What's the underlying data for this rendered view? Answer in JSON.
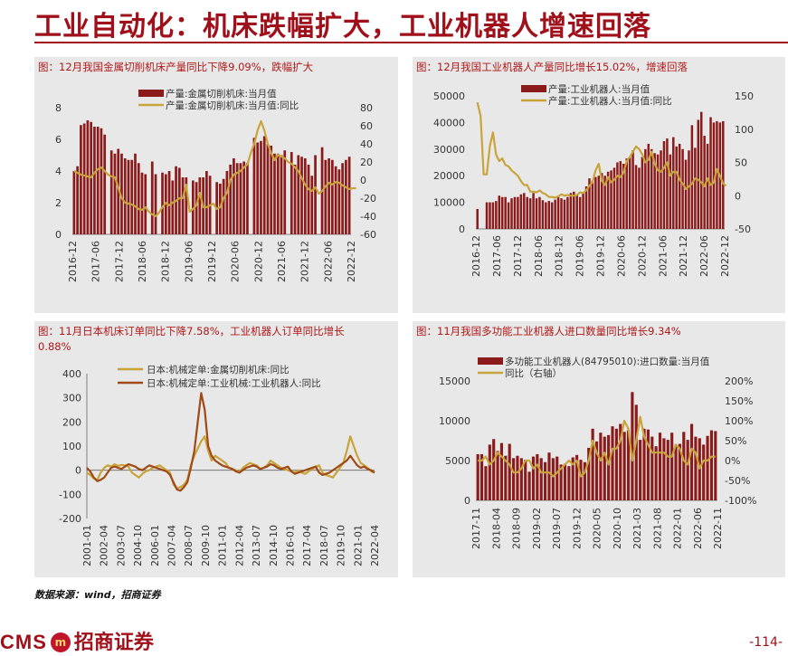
{
  "page": {
    "title": "工业自动化：机床跌幅扩大，工业机器人增速回落",
    "source": "数据来源：wind，招商证券",
    "brand_en": "CMS",
    "brand_cn": "招商证券",
    "page_number": "-114-"
  },
  "colors": {
    "bar": "#8b1a1a",
    "gold": "#c8a43a",
    "brown": "#a04a16",
    "panel": "#e8e8e8",
    "accent": "#a0101a"
  },
  "chart_data": [
    {
      "type": "bar",
      "panel_title": "图：12月我国金属切削机床产量同比下降9.09%，跌幅扩大",
      "legend": [
        "产量:金属切削机床:当月值",
        "产量:金属切削机床:当月值:同比"
      ],
      "x_ticks": [
        "2016-12",
        "2017-06",
        "2017-12",
        "2018-06",
        "2018-12",
        "2019-06",
        "2019-12",
        "2020-06",
        "2020-12",
        "2021-06",
        "2021-12",
        "2022-06",
        "2022-12"
      ],
      "y_left": {
        "ticks": [
          "0",
          "2",
          "4",
          "6",
          "8"
        ],
        "range": [
          0,
          8
        ]
      },
      "y_right": {
        "ticks": [
          "-60",
          "-40",
          "-20",
          "0",
          "20",
          "40",
          "60",
          "80"
        ],
        "range": [
          -60,
          80
        ]
      },
      "series": [
        {
          "kind": "bar",
          "axis": "left",
          "values": [
            4.0,
            4.3,
            6.9,
            7.0,
            7.2,
            7.1,
            6.8,
            6.8,
            6.7,
            6.3,
            0,
            5.3,
            5.1,
            5.4,
            5.1,
            4.8,
            4.7,
            4.7,
            5.1,
            4.5,
            3.9,
            3.8,
            0,
            4.6,
            3.8,
            0,
            3.9,
            3.8,
            4.0,
            3.4,
            4.3,
            4.2,
            3.6,
            3.6,
            0,
            3.4,
            3.3,
            3.6,
            3.6,
            4.0,
            3.7,
            0,
            3.3,
            3.2,
            3.5,
            4.0,
            4.4,
            4.8,
            4.5,
            4.5,
            4.6,
            4.5,
            0,
            6.1,
            5.8,
            5.9,
            6.2,
            5.7,
            5.6,
            5.1,
            5.1,
            5.0,
            5.3,
            0,
            5.2,
            4.4,
            5.0,
            4.9,
            4.8,
            4.4,
            3.7,
            5.0,
            0,
            5.5,
            4.7,
            4.8,
            4.7,
            4.3,
            4.1,
            4.5,
            4.7,
            4.9
          ]
        },
        {
          "kind": "line",
          "axis": "right",
          "values": [
            10,
            8,
            6,
            5,
            4,
            3,
            8,
            12,
            14,
            10,
            6,
            4,
            3,
            -8,
            -20,
            -25,
            -26,
            -27,
            -29,
            -32,
            -33,
            -30,
            -35,
            -38,
            -40,
            -36,
            -30,
            -25,
            -28,
            -25,
            -23,
            -20,
            -20,
            -5,
            -35,
            -32,
            -28,
            -14,
            -30,
            -30,
            -28,
            -26,
            -32,
            -30,
            -20,
            -14,
            0,
            6,
            8,
            10,
            14,
            17,
            30,
            40,
            55,
            65,
            55,
            40,
            30,
            22,
            28,
            26,
            24,
            20,
            18,
            14,
            10,
            2,
            -5,
            -10,
            -12,
            -8,
            -15,
            -12,
            -7,
            -3,
            -5,
            -2,
            -3,
            -6,
            -8,
            -10,
            -9,
            -9
          ]
        }
      ]
    },
    {
      "type": "bar",
      "panel_title": "图：12月我国工业机器人产量同比增长15.02%，增速回落",
      "legend": [
        "产量:工业机器人:当月值",
        "产量:工业机器人:当月值:同比"
      ],
      "x_ticks": [
        "2016-12",
        "2017-06",
        "2017-12",
        "2018-06",
        "2018-12",
        "2019-06",
        "2019-12",
        "2020-06",
        "2020-12",
        "2021-06",
        "2021-12",
        "2022-06",
        "2022-12"
      ],
      "y_left": {
        "ticks": [
          "0",
          "10000",
          "20000",
          "30000",
          "40000",
          "50000"
        ],
        "range": [
          0,
          50000
        ]
      },
      "y_right": {
        "ticks": [
          "-50",
          "0",
          "50",
          "100",
          "150"
        ],
        "range": [
          -50,
          150
        ]
      },
      "series": [
        {
          "kind": "bar",
          "axis": "left",
          "values": [
            7500,
            0,
            0,
            10000,
            10000,
            10000,
            10500,
            12500,
            12000,
            12000,
            10000,
            11500,
            12000,
            12000,
            13000,
            13500,
            12000,
            11500,
            13500,
            11500,
            12000,
            10800,
            10000,
            10500,
            10000,
            11000,
            12000,
            11500,
            11000,
            12000,
            13500,
            14000,
            13000,
            12000,
            13500,
            16000,
            19000,
            18000,
            19500,
            20000,
            21000,
            20000,
            21500,
            22000,
            23000,
            25000,
            25500,
            24500,
            26500,
            27000,
            29500,
            24000,
            23000,
            27000,
            30000,
            32000,
            30000,
            28500,
            28000,
            29500,
            33000,
            34000,
            28000,
            34500,
            31000,
            32000,
            30000,
            26000,
            29500,
            39000,
            30500,
            41000,
            44000,
            35000,
            32000,
            42000,
            40000,
            40500,
            40000,
            40500
          ]
        },
        {
          "kind": "line",
          "axis": "right",
          "values": [
            140,
            120,
            32,
            32,
            75,
            95,
            62,
            52,
            56,
            46,
            44,
            38,
            34,
            30,
            22,
            16,
            16,
            6,
            6,
            5,
            8,
            4,
            2,
            -2,
            -2,
            -3,
            -1,
            2,
            0,
            1,
            0,
            0,
            1,
            5,
            4,
            8,
            15,
            20,
            38,
            48,
            22,
            16,
            28,
            20,
            24,
            30,
            28,
            35,
            52,
            58,
            66,
            74,
            70,
            62,
            50,
            54,
            66,
            48,
            38,
            36,
            42,
            50,
            30,
            36,
            36,
            24,
            18,
            10,
            14,
            18,
            26,
            24,
            20,
            14,
            26,
            16,
            20,
            40,
            30,
            18,
            15
          ]
        }
      ]
    },
    {
      "type": "line",
      "panel_title": "图：11月日本机床订单同比下降7.58%，工业机器人订单同比增长0.88%",
      "legend": [
        "日本:机械定单:金属切削机床:同比",
        "日本:机械定单:工业机械:工业机器人:同比"
      ],
      "x_ticks": [
        "2001-01",
        "2002-04",
        "2003-07",
        "2004-10",
        "2006-01",
        "2007-04",
        "2008-07",
        "2009-10",
        "2011-01",
        "2012-04",
        "2013-07",
        "2014-10",
        "2016-01",
        "2017-04",
        "2018-07",
        "2019-10",
        "2021-01",
        "2022-04"
      ],
      "y": {
        "ticks": [
          "-200",
          "-100",
          "0",
          "100",
          "200",
          "300",
          "400"
        ],
        "range": [
          -200,
          400
        ]
      },
      "series": [
        {
          "kind": "line",
          "color": "gold",
          "values": [
            -10,
            -20,
            -35,
            -40,
            -10,
            10,
            20,
            15,
            25,
            18,
            22,
            20,
            15,
            -10,
            -20,
            -30,
            -15,
            -5,
            0,
            10,
            15,
            20,
            10,
            0,
            -10,
            -60,
            -75,
            -70,
            -60,
            -40,
            20,
            60,
            90,
            120,
            140,
            80,
            40,
            60,
            50,
            40,
            30,
            10,
            5,
            0,
            -10,
            10,
            20,
            30,
            25,
            20,
            5,
            10,
            20,
            40,
            30,
            20,
            10,
            5,
            0,
            -5,
            -10,
            0,
            -10,
            -15,
            -5,
            5,
            15,
            20,
            -10,
            -20,
            -25,
            -30,
            -10,
            10,
            30,
            80,
            140,
            100,
            60,
            30,
            20,
            10,
            -5,
            -10
          ]
        },
        {
          "kind": "line",
          "color": "brown",
          "values": [
            10,
            -5,
            -30,
            -45,
            -40,
            -30,
            -10,
            10,
            15,
            10,
            5,
            15,
            25,
            20,
            15,
            5,
            0,
            10,
            20,
            15,
            10,
            5,
            0,
            -5,
            -20,
            -50,
            -80,
            -85,
            -70,
            -50,
            10,
            80,
            200,
            320,
            250,
            100,
            60,
            40,
            30,
            20,
            15,
            10,
            5,
            -5,
            -10,
            0,
            10,
            15,
            20,
            15,
            5,
            10,
            15,
            25,
            20,
            10,
            5,
            10,
            15,
            -5,
            -15,
            -10,
            -5,
            0,
            5,
            10,
            15,
            -10,
            -20,
            -15,
            -10,
            0,
            10,
            20,
            30,
            40,
            60,
            40,
            20,
            10,
            15,
            5,
            0,
            -10
          ]
        }
      ]
    },
    {
      "type": "bar",
      "panel_title": "图：11月我国多功能工业机器人进口数量同比增长9.34%",
      "legend": [
        "多功能工业机器人(84795010):进口数量:当月值",
        "同比（右轴）"
      ],
      "x_ticks": [
        "2017-11",
        "2018-04",
        "2018-09",
        "2019-02",
        "2019-07",
        "2019-12",
        "2020-05",
        "2020-10",
        "2021-03",
        "2021-08",
        "2022-01",
        "2022-06",
        "2022-11"
      ],
      "y_left": {
        "ticks": [
          "0",
          "5000",
          "10000",
          "15000"
        ],
        "range": [
          0,
          15000
        ]
      },
      "y_right": {
        "ticks": [
          "-100%",
          "-50%",
          "0%",
          "50%",
          "100%",
          "150%",
          "200%"
        ],
        "range": [
          -100,
          200
        ]
      },
      "series": [
        {
          "kind": "bar",
          "axis": "left",
          "values": [
            5800,
            5800,
            4300,
            7000,
            7700,
            6200,
            7200,
            5600,
            7100,
            5300,
            5600,
            5300,
            5100,
            3600,
            5500,
            5800,
            5300,
            4800,
            6000,
            5300,
            5500,
            4500,
            4600,
            4300,
            5400,
            5700,
            5100,
            4800,
            6600,
            9000,
            7400,
            8500,
            8000,
            8200,
            9300,
            9000,
            9600,
            8600,
            8800,
            13600,
            12000,
            7600,
            9000,
            8900,
            8000,
            6800,
            8500,
            7800,
            7600,
            8500,
            7000,
            7100,
            8600,
            7600,
            9600,
            8000,
            7800,
            7000,
            8100,
            8800,
            8700
          ]
        },
        {
          "kind": "line",
          "axis": "right",
          "values": [
            0,
            0,
            10,
            -10,
            0,
            20,
            10,
            0,
            -10,
            -30,
            -30,
            -20,
            0,
            0,
            -20,
            -10,
            -30,
            -30,
            -30,
            -40,
            -30,
            -20,
            -10,
            0,
            -10,
            0,
            -40,
            -30,
            0,
            50,
            20,
            0,
            20,
            -10,
            30,
            30,
            50,
            100,
            80,
            0,
            50,
            110,
            60,
            40,
            20,
            20,
            20,
            20,
            10,
            10,
            40,
            30,
            0,
            -10,
            30,
            20,
            -20,
            0,
            0,
            10,
            10
          ]
        }
      ]
    }
  ]
}
